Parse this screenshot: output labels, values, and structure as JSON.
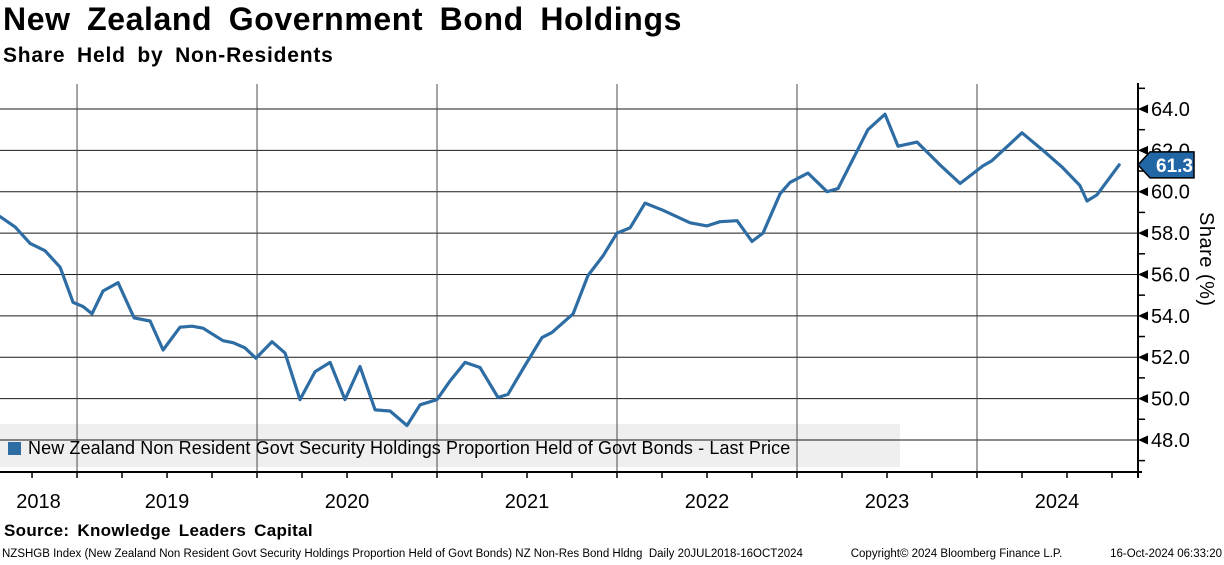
{
  "header": {
    "title": "New Zealand Government Bond Holdings",
    "subtitle": "Share Held by Non-Residents"
  },
  "legend": {
    "label": "New Zealand Non Resident Govt Security Holdings Proportion Held of Govt Bonds - Last Price"
  },
  "y_axis_label": "Share (%)",
  "source": "Source: Knowledge Leaders Capital",
  "footer": {
    "left": "NZSHGB Index (New Zealand Non Resident Govt Security Holdings Proportion Held of Govt Bonds) NZ Non-Res Bond Hldng  Daily 20JUL2018-16OCT2024",
    "copyright": "Copyright© 2024 Bloomberg Finance L.P.",
    "timestamp": "16-Oct-2024 06:33:20"
  },
  "colors": {
    "line": "#2e6da4",
    "badge_fill": "#2166a5",
    "grid": "#1a1a1a",
    "year_line": "#4a4a4a",
    "axis": "#000000",
    "legend_bg": "#efefef"
  },
  "chart_data": {
    "type": "line",
    "title": "New Zealand Government Bond Holdings",
    "subtitle": "Share Held by Non-Residents",
    "ylabel": "Share (%)",
    "period": "Daily 20JUL2018-16OCT2024",
    "grid": true,
    "legend_position": "bottom-left",
    "last_price": 61.3,
    "last_price_label": "61.3",
    "y_ticks": [
      48.0,
      50.0,
      52.0,
      54.0,
      56.0,
      58.0,
      60.0,
      62.0,
      64.0
    ],
    "ylim": [
      46.45,
      65.16
    ],
    "x_years": [
      2018,
      2019,
      2020,
      2021,
      2022,
      2023,
      2024
    ],
    "xlim": [
      2018.572,
      2024.889
    ],
    "series": [
      {
        "name": "New Zealand Non Resident Govt Security Holdings Proportion Held of Govt Bonds - Last Price",
        "color": "#2e6da4",
        "points": [
          [
            2018.572,
            58.8
          ],
          [
            2018.656,
            58.3
          ],
          [
            2018.739,
            57.5
          ],
          [
            2018.822,
            57.15
          ],
          [
            2018.906,
            56.35
          ],
          [
            2018.978,
            54.65
          ],
          [
            2019.033,
            54.45
          ],
          [
            2019.083,
            54.1
          ],
          [
            2019.144,
            55.2
          ],
          [
            2019.228,
            55.6
          ],
          [
            2019.317,
            53.9
          ],
          [
            2019.406,
            53.75
          ],
          [
            2019.478,
            52.35
          ],
          [
            2019.572,
            53.45
          ],
          [
            2019.639,
            53.5
          ],
          [
            2019.7,
            53.4
          ],
          [
            2019.811,
            52.8
          ],
          [
            2019.867,
            52.7
          ],
          [
            2019.933,
            52.45
          ],
          [
            2019.994,
            51.95
          ],
          [
            2020.083,
            52.75
          ],
          [
            2020.156,
            52.2
          ],
          [
            2020.239,
            49.95
          ],
          [
            2020.322,
            51.3
          ],
          [
            2020.406,
            51.75
          ],
          [
            2020.489,
            49.95
          ],
          [
            2020.572,
            51.55
          ],
          [
            2020.656,
            49.45
          ],
          [
            2020.739,
            49.4
          ],
          [
            2020.833,
            48.7
          ],
          [
            2020.906,
            49.7
          ],
          [
            2021.0,
            49.95
          ],
          [
            2021.072,
            50.85
          ],
          [
            2021.156,
            51.75
          ],
          [
            2021.239,
            51.5
          ],
          [
            2021.339,
            50.05
          ],
          [
            2021.394,
            50.2
          ],
          [
            2021.489,
            51.6
          ],
          [
            2021.583,
            52.95
          ],
          [
            2021.639,
            53.2
          ],
          [
            2021.756,
            54.1
          ],
          [
            2021.839,
            55.95
          ],
          [
            2021.922,
            56.9
          ],
          [
            2022.0,
            58.0
          ],
          [
            2022.072,
            58.25
          ],
          [
            2022.156,
            59.45
          ],
          [
            2022.256,
            59.1
          ],
          [
            2022.406,
            58.5
          ],
          [
            2022.5,
            58.35
          ],
          [
            2022.572,
            58.55
          ],
          [
            2022.667,
            58.6
          ],
          [
            2022.75,
            57.6
          ],
          [
            2022.811,
            58.0
          ],
          [
            2022.906,
            59.9
          ],
          [
            2022.961,
            60.45
          ],
          [
            2023.061,
            60.9
          ],
          [
            2023.167,
            60.0
          ],
          [
            2023.228,
            60.15
          ],
          [
            2023.394,
            63.0
          ],
          [
            2023.489,
            63.75
          ],
          [
            2023.561,
            62.2
          ],
          [
            2023.667,
            62.4
          ],
          [
            2023.794,
            61.3
          ],
          [
            2023.906,
            60.4
          ],
          [
            2024.033,
            61.25
          ],
          [
            2024.083,
            61.5
          ],
          [
            2024.25,
            62.85
          ],
          [
            2024.367,
            62.0
          ],
          [
            2024.472,
            61.2
          ],
          [
            2024.572,
            60.3
          ],
          [
            2024.611,
            59.55
          ],
          [
            2024.667,
            59.85
          ],
          [
            2024.79,
            61.3
          ]
        ]
      }
    ]
  }
}
